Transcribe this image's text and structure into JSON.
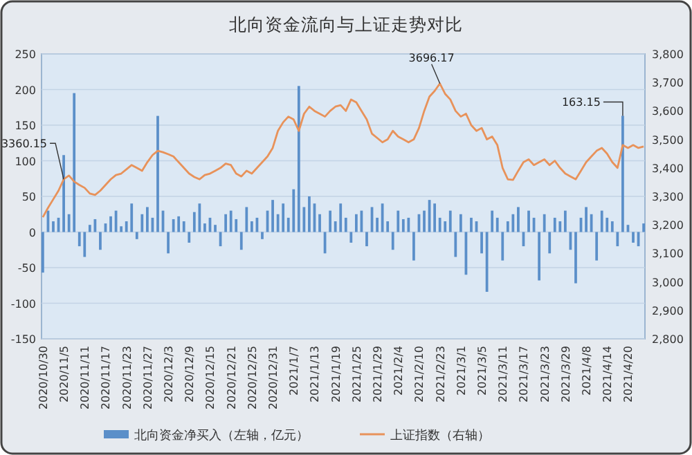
{
  "chart_data": {
    "type": "bar",
    "title": "北向资金流向与上证走势对比",
    "categories": [
      "2020/10/30",
      null,
      null,
      null,
      "2020/11/5",
      null,
      null,
      null,
      "2020/11/11",
      null,
      null,
      null,
      "2020/11/17",
      null,
      null,
      null,
      "2020/11/23",
      null,
      null,
      null,
      "2020/11/27",
      null,
      null,
      null,
      "2020/12/3",
      null,
      null,
      null,
      "2020/12/9",
      null,
      null,
      null,
      "2020/12/15",
      null,
      null,
      null,
      "2020/12/21",
      null,
      null,
      null,
      "2020/12/25",
      null,
      null,
      null,
      "2020/12/31",
      null,
      null,
      null,
      "2021/1/7",
      null,
      null,
      null,
      "2021/1/13",
      null,
      null,
      null,
      "2021/1/19",
      null,
      null,
      null,
      "2021/1/25",
      null,
      null,
      null,
      "2021/1/29",
      null,
      null,
      null,
      "2021/2/4",
      null,
      null,
      null,
      "2021/2/10",
      null,
      null,
      null,
      "2021/2/23",
      null,
      null,
      null,
      "2021/3/1",
      null,
      null,
      null,
      "2021/3/5",
      null,
      null,
      null,
      "2021/3/11",
      null,
      null,
      null,
      "2021/3/17",
      null,
      null,
      null,
      "2021/3/23",
      null,
      null,
      null,
      "2021/3/29",
      null,
      null,
      null,
      "2021/4/8",
      null,
      null,
      null,
      "2021/4/14",
      null,
      null,
      null,
      "2021/4/20",
      null,
      null,
      null
    ],
    "series": [
      {
        "name": "北向资金净买入（左轴，亿元）",
        "color": "#5b8fc9",
        "values": [
          -57,
          30,
          15,
          20,
          108,
          25,
          195,
          -20,
          -35,
          10,
          18,
          -25,
          12,
          22,
          30,
          8,
          15,
          40,
          -10,
          25,
          35,
          20,
          163,
          30,
          -30,
          18,
          22,
          15,
          -15,
          28,
          40,
          12,
          20,
          10,
          -20,
          25,
          30,
          18,
          -25,
          35,
          15,
          20,
          -10,
          30,
          45,
          25,
          40,
          20,
          60,
          205,
          35,
          50,
          40,
          25,
          -30,
          30,
          15,
          40,
          20,
          -15,
          25,
          30,
          -20,
          35,
          20,
          40,
          15,
          -25,
          30,
          18,
          20,
          -40,
          25,
          30,
          45,
          40,
          20,
          15,
          30,
          -35,
          25,
          -60,
          20,
          15,
          -30,
          -84,
          30,
          20,
          -40,
          15,
          25,
          35,
          -20,
          30,
          20,
          -68,
          25,
          -30,
          20,
          15,
          30,
          -25,
          -72,
          20,
          35,
          25,
          -40,
          30,
          20,
          15,
          -20,
          163.15,
          10,
          -15,
          -20,
          12
        ],
        "value_labels": [
          null,
          null,
          null,
          null,
          null,
          null,
          null,
          null,
          null,
          null,
          null,
          null,
          null,
          null,
          null,
          null,
          null,
          null,
          null,
          null,
          null,
          null,
          null,
          null,
          null,
          null,
          null,
          null,
          null,
          null,
          null,
          null,
          null,
          null,
          null,
          null,
          null,
          null,
          null,
          null,
          null,
          null,
          null,
          null,
          null,
          null,
          null,
          null,
          null,
          null,
          null,
          null,
          null,
          null,
          null,
          null,
          null,
          null,
          null,
          null,
          null,
          null,
          null,
          null,
          null,
          null,
          null,
          null,
          null,
          null,
          null,
          null,
          null,
          null,
          null,
          null,
          null,
          null,
          null,
          null,
          null,
          null,
          null,
          null,
          null,
          null,
          null,
          null,
          null,
          null,
          null,
          null,
          null,
          null,
          null,
          null,
          null,
          null,
          null,
          null,
          null,
          null,
          null,
          null,
          null,
          null,
          null,
          null,
          null,
          null,
          null,
          "163.15",
          null,
          null,
          null,
          null
        ]
      },
      {
        "name": "上证指数（右轴）",
        "type": "line",
        "axis": "y2",
        "color": "#e8925a",
        "values": [
          3227,
          3260,
          3290,
          3320,
          3360.15,
          3373,
          3352,
          3340,
          3330,
          3310,
          3305,
          3320,
          3340,
          3360,
          3375,
          3380,
          3395,
          3410,
          3400,
          3390,
          3420,
          3445,
          3460,
          3455,
          3448,
          3440,
          3420,
          3400,
          3380,
          3368,
          3360,
          3375,
          3380,
          3390,
          3400,
          3415,
          3410,
          3380,
          3370,
          3390,
          3380,
          3400,
          3420,
          3440,
          3470,
          3530,
          3560,
          3580,
          3570,
          3530,
          3590,
          3615,
          3600,
          3590,
          3580,
          3600,
          3615,
          3620,
          3600,
          3640,
          3630,
          3600,
          3570,
          3520,
          3505,
          3490,
          3500,
          3530,
          3510,
          3500,
          3490,
          3500,
          3540,
          3600,
          3650,
          3670,
          3696.17,
          3660,
          3640,
          3600,
          3580,
          3590,
          3550,
          3530,
          3540,
          3500,
          3510,
          3480,
          3400,
          3360,
          3358,
          3390,
          3420,
          3430,
          3410,
          3420,
          3430,
          3410,
          3425,
          3400,
          3380,
          3370,
          3360,
          3390,
          3420,
          3440,
          3460,
          3470,
          3450,
          3420,
          3400,
          3480,
          3470,
          3480,
          3470,
          3475
        ],
        "value_labels": [
          null,
          null,
          null,
          null,
          "3360.15",
          null,
          null,
          null,
          null,
          null,
          null,
          null,
          null,
          null,
          null,
          null,
          null,
          null,
          null,
          null,
          null,
          null,
          null,
          null,
          null,
          null,
          null,
          null,
          null,
          null,
          null,
          null,
          null,
          null,
          null,
          null,
          null,
          null,
          null,
          null,
          null,
          null,
          null,
          null,
          null,
          null,
          null,
          null,
          null,
          null,
          null,
          null,
          null,
          null,
          null,
          null,
          null,
          null,
          null,
          null,
          null,
          null,
          null,
          null,
          null,
          null,
          null,
          null,
          null,
          null,
          null,
          null,
          null,
          null,
          null,
          null,
          "3696.17",
          null,
          null,
          null,
          null,
          null,
          null,
          null,
          null,
          null,
          null,
          null,
          null,
          null,
          null,
          null,
          null,
          null,
          null,
          null,
          null,
          null,
          null,
          null,
          null,
          null,
          null,
          null,
          null,
          null,
          null,
          null,
          null,
          null,
          null,
          null,
          null,
          null,
          null,
          null
        ]
      }
    ],
    "ylim": [
      -150,
      250
    ],
    "yticks": [
      -150,
      -100,
      -50,
      0,
      50,
      100,
      150,
      200,
      250
    ],
    "y2lim": [
      2800,
      3800
    ],
    "y2ticks": [
      {
        "value": 2800,
        "label": "2,800"
      },
      {
        "value": 2900,
        "label": "2,900"
      },
      {
        "value": 3000,
        "label": "3,000"
      },
      {
        "value": 3100,
        "label": "3,100"
      },
      {
        "value": 3200,
        "label": "3,200"
      },
      {
        "value": 3300,
        "label": "3,300"
      },
      {
        "value": 3400,
        "label": "3,400"
      },
      {
        "value": 3500,
        "label": "3,500"
      },
      {
        "value": 3600,
        "label": "3,600"
      },
      {
        "value": 3700,
        "label": "3,700"
      },
      {
        "value": 3800,
        "label": "3,800"
      }
    ],
    "grid": "y",
    "legend": "bottom"
  }
}
